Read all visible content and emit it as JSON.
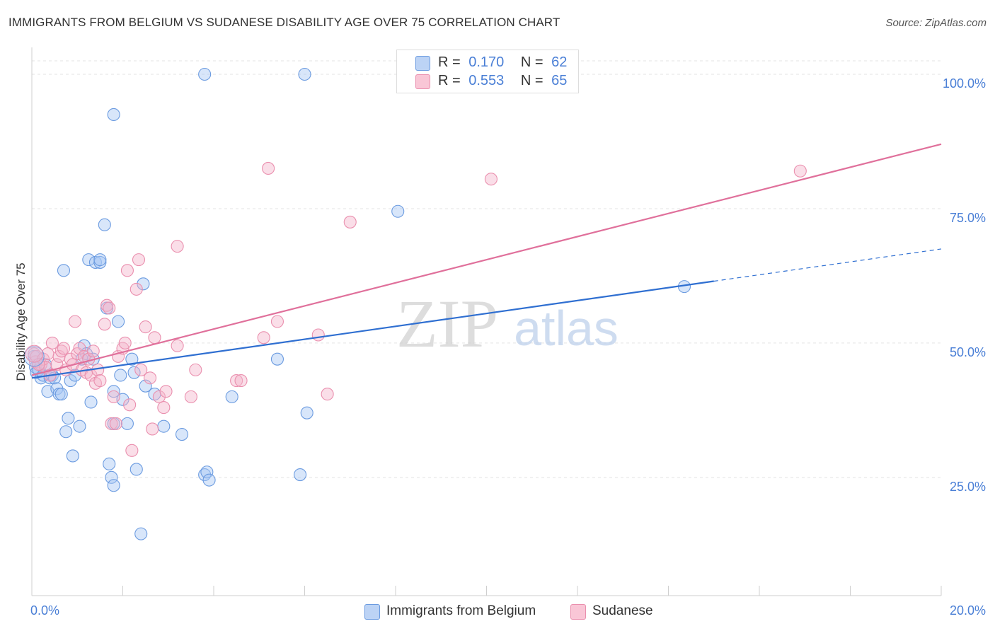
{
  "title": "IMMIGRANTS FROM BELGIUM VS SUDANESE DISABILITY AGE OVER 75 CORRELATION CHART",
  "source": "Source: ZipAtlas.com",
  "watermark": {
    "zip": "ZIP",
    "atlas": "atlas"
  },
  "legend": {
    "r_label": "R =",
    "n_label": "N =",
    "entries": [
      {
        "name": "Immigrants from Belgium",
        "r": "0.170",
        "n": "62"
      },
      {
        "name": "Sudanese",
        "r": "0.553",
        "n": "65"
      }
    ]
  },
  "colors": {
    "blue_fill": "#a9c8f3",
    "blue_stroke": "#6b9be0",
    "blue_line": "#2f6fd1",
    "pink_fill": "#f5b6cb",
    "pink_stroke": "#ea8fae",
    "pink_line": "#e0709b",
    "tick_label": "#4a7fd6",
    "grid": "#e3e3e3"
  },
  "chart_data": {
    "type": "scatter",
    "title": "IMMIGRANTS FROM BELGIUM VS SUDANESE DISABILITY AGE OVER 75 CORRELATION CHART",
    "xlabel": "",
    "ylabel": "Disability Age Over 75",
    "xlim": [
      0,
      20
    ],
    "ylim": [
      3,
      105
    ],
    "x_tick_labels": [
      "0.0%",
      "20.0%"
    ],
    "y_ticks": [
      25,
      50,
      75,
      100
    ],
    "y_tick_labels": [
      "25.0%",
      "50.0%",
      "75.0%",
      "100.0%"
    ],
    "grid": true,
    "series": [
      {
        "name": "Immigrants from Belgium",
        "color": "#6b9be0",
        "points": [
          {
            "x": 0.05,
            "y": 47.5
          },
          {
            "x": 0.08,
            "y": 45.5
          },
          {
            "x": 0.1,
            "y": 44.5
          },
          {
            "x": 0.15,
            "y": 45
          },
          {
            "x": 0.2,
            "y": 43.5
          },
          {
            "x": 0.25,
            "y": 44
          },
          {
            "x": 0.3,
            "y": 46
          },
          {
            "x": 0.35,
            "y": 41
          },
          {
            "x": 0.4,
            "y": 43.5
          },
          {
            "x": 0.45,
            "y": 44
          },
          {
            "x": 0.5,
            "y": 43.5
          },
          {
            "x": 0.55,
            "y": 41.5
          },
          {
            "x": 0.6,
            "y": 40.5
          },
          {
            "x": 0.65,
            "y": 40.5
          },
          {
            "x": 0.7,
            "y": 63.5
          },
          {
            "x": 0.75,
            "y": 33.5
          },
          {
            "x": 0.8,
            "y": 36
          },
          {
            "x": 0.85,
            "y": 43
          },
          {
            "x": 0.9,
            "y": 29
          },
          {
            "x": 0.95,
            "y": 44
          },
          {
            "x": 1.05,
            "y": 34.5
          },
          {
            "x": 1.1,
            "y": 47
          },
          {
            "x": 1.15,
            "y": 49.5
          },
          {
            "x": 1.2,
            "y": 48
          },
          {
            "x": 1.25,
            "y": 65.5
          },
          {
            "x": 1.3,
            "y": 39
          },
          {
            "x": 1.35,
            "y": 47
          },
          {
            "x": 1.4,
            "y": 65
          },
          {
            "x": 1.5,
            "y": 65
          },
          {
            "x": 1.5,
            "y": 65.5
          },
          {
            "x": 1.6,
            "y": 72
          },
          {
            "x": 1.65,
            "y": 56.5
          },
          {
            "x": 1.7,
            "y": 27.5
          },
          {
            "x": 1.75,
            "y": 25
          },
          {
            "x": 1.8,
            "y": 41
          },
          {
            "x": 1.8,
            "y": 35
          },
          {
            "x": 1.8,
            "y": 23.5
          },
          {
            "x": 1.8,
            "y": 92.5
          },
          {
            "x": 1.9,
            "y": 54
          },
          {
            "x": 1.95,
            "y": 44
          },
          {
            "x": 2.0,
            "y": 39.5
          },
          {
            "x": 2.1,
            "y": 35
          },
          {
            "x": 2.2,
            "y": 47
          },
          {
            "x": 2.25,
            "y": 44.5
          },
          {
            "x": 2.3,
            "y": 26.5
          },
          {
            "x": 2.4,
            "y": 14.5
          },
          {
            "x": 2.45,
            "y": 61
          },
          {
            "x": 2.5,
            "y": 42
          },
          {
            "x": 2.7,
            "y": 40.5
          },
          {
            "x": 2.9,
            "y": 34.5
          },
          {
            "x": 3.3,
            "y": 33
          },
          {
            "x": 3.8,
            "y": 100
          },
          {
            "x": 3.8,
            "y": 25.5
          },
          {
            "x": 3.85,
            "y": 26
          },
          {
            "x": 3.9,
            "y": 24.5
          },
          {
            "x": 4.4,
            "y": 40
          },
          {
            "x": 5.4,
            "y": 47
          },
          {
            "x": 5.9,
            "y": 25.5
          },
          {
            "x": 6.0,
            "y": 100
          },
          {
            "x": 6.05,
            "y": 37
          },
          {
            "x": 8.05,
            "y": 74.5
          },
          {
            "x": 14.35,
            "y": 60.5
          }
        ],
        "trend": {
          "x": [
            0.0,
            15.0
          ],
          "y": [
            43.5,
            61.5
          ],
          "dashed_extension": {
            "x": [
              15.0,
              20.0
            ],
            "y": [
              61.5,
              67.5
            ]
          }
        }
      },
      {
        "name": "Sudanese",
        "color": "#ea8fae",
        "points": [
          {
            "x": 0.05,
            "y": 48
          },
          {
            "x": 0.08,
            "y": 46.5
          },
          {
            "x": 0.1,
            "y": 47.5
          },
          {
            "x": 0.2,
            "y": 46
          },
          {
            "x": 0.25,
            "y": 47
          },
          {
            "x": 0.3,
            "y": 45.5
          },
          {
            "x": 0.35,
            "y": 48
          },
          {
            "x": 0.45,
            "y": 50
          },
          {
            "x": 0.55,
            "y": 46
          },
          {
            "x": 0.6,
            "y": 47.5
          },
          {
            "x": 0.65,
            "y": 48.5
          },
          {
            "x": 0.7,
            "y": 49
          },
          {
            "x": 0.75,
            "y": 45
          },
          {
            "x": 0.85,
            "y": 47
          },
          {
            "x": 0.9,
            "y": 46
          },
          {
            "x": 0.95,
            "y": 54
          },
          {
            "x": 1.0,
            "y": 48
          },
          {
            "x": 1.05,
            "y": 49
          },
          {
            "x": 1.1,
            "y": 45
          },
          {
            "x": 1.15,
            "y": 47.5
          },
          {
            "x": 1.2,
            "y": 44.5
          },
          {
            "x": 1.25,
            "y": 47
          },
          {
            "x": 1.3,
            "y": 44
          },
          {
            "x": 1.35,
            "y": 48.5
          },
          {
            "x": 1.4,
            "y": 42.5
          },
          {
            "x": 1.45,
            "y": 45
          },
          {
            "x": 1.5,
            "y": 43
          },
          {
            "x": 1.6,
            "y": 53.5
          },
          {
            "x": 1.65,
            "y": 57
          },
          {
            "x": 1.7,
            "y": 56.5
          },
          {
            "x": 1.75,
            "y": 35
          },
          {
            "x": 1.8,
            "y": 40
          },
          {
            "x": 1.85,
            "y": 35
          },
          {
            "x": 1.9,
            "y": 47.5
          },
          {
            "x": 2.0,
            "y": 49
          },
          {
            "x": 2.05,
            "y": 50
          },
          {
            "x": 2.1,
            "y": 63.5
          },
          {
            "x": 2.15,
            "y": 38.5
          },
          {
            "x": 2.2,
            "y": 30
          },
          {
            "x": 2.3,
            "y": 60
          },
          {
            "x": 2.35,
            "y": 65.5
          },
          {
            "x": 2.4,
            "y": 45
          },
          {
            "x": 2.5,
            "y": 53
          },
          {
            "x": 2.6,
            "y": 43.5
          },
          {
            "x": 2.65,
            "y": 34
          },
          {
            "x": 2.7,
            "y": 51
          },
          {
            "x": 2.8,
            "y": 40
          },
          {
            "x": 2.9,
            "y": 38
          },
          {
            "x": 2.95,
            "y": 41
          },
          {
            "x": 3.2,
            "y": 49.5
          },
          {
            "x": 3.2,
            "y": 68
          },
          {
            "x": 3.5,
            "y": 40
          },
          {
            "x": 3.6,
            "y": 45
          },
          {
            "x": 4.5,
            "y": 43
          },
          {
            "x": 4.6,
            "y": 43
          },
          {
            "x": 5.1,
            "y": 51
          },
          {
            "x": 5.2,
            "y": 82.5
          },
          {
            "x": 5.4,
            "y": 54
          },
          {
            "x": 6.3,
            "y": 51.5
          },
          {
            "x": 6.5,
            "y": 40.5
          },
          {
            "x": 7.0,
            "y": 72.5
          },
          {
            "x": 10.1,
            "y": 80.5
          },
          {
            "x": 16.9,
            "y": 82
          },
          {
            "x": 0.15,
            "y": 46
          },
          {
            "x": 0.4,
            "y": 44
          }
        ],
        "trend": {
          "x": [
            0.0,
            20.0
          ],
          "y": [
            44.0,
            87.0
          ]
        }
      }
    ]
  }
}
